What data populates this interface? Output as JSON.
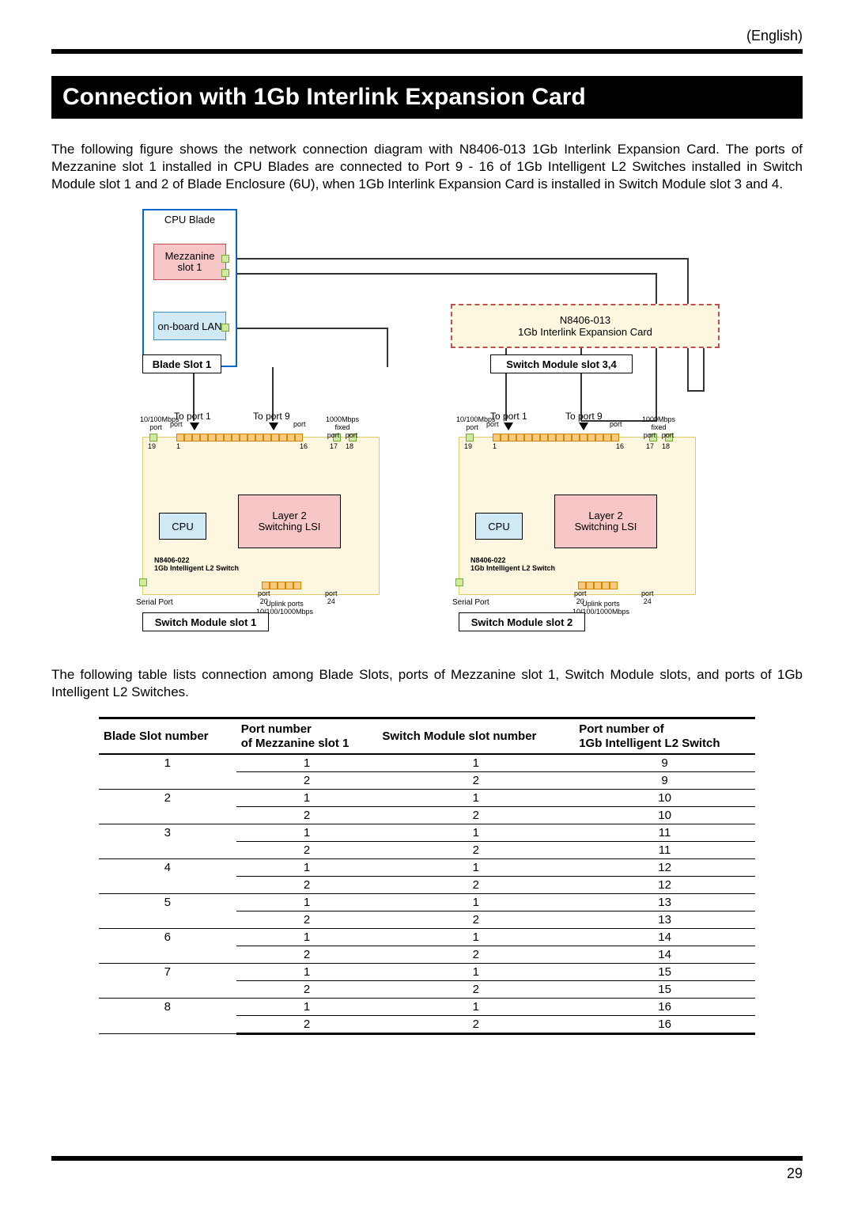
{
  "header": {
    "language_tag": "(English)"
  },
  "title": "Connection with 1Gb Interlink Expansion Card",
  "intro_text": "The following figure shows the network connection diagram with N8406-013 1Gb Interlink Expansion Card. The ports of Mezzanine slot 1 installed in CPU Blades are connected to Port 9 - 16 of 1Gb Intelligent L2 Switches installed in Switch Module slot 1 and 2 of Blade Enclosure (6U), when 1Gb Interlink Expansion Card is installed in Switch Module slot 3 and 4.",
  "diagram": {
    "cpu_blade": {
      "label": "CPU Blade",
      "bg": "#ffffff",
      "border": "#0066cc"
    },
    "mezz_slot": {
      "label_l1": "Mezzanine",
      "label_l2": "slot 1",
      "bg": "#f7c7c7",
      "border": "#c05050"
    },
    "onboard_lan": {
      "label": "on-board LAN",
      "bg": "#cfe9f5",
      "border": "#4a90c0"
    },
    "blade_slot_1": {
      "label": "Blade Slot 1",
      "bg": "#ffffff"
    },
    "interlink_card": {
      "label_l1": "N8406-013",
      "label_l2": "1Gb Interlink Expansion Card",
      "bg": "#fdf7e0",
      "border": "#dbcc6a"
    },
    "interlink_border_dash_color": "#c05050",
    "sm_slot_34": {
      "label": "Switch Module slot 3,4",
      "bg": "#ffffff"
    },
    "to_port_1": "To port 1",
    "to_port_9": "To port 9",
    "switch": {
      "bg": "#fdf7e0",
      "border": "#dbcc6a",
      "cpu_label": "CPU",
      "cpu_bg": "#cfe9f5",
      "lsi_l1": "Layer 2",
      "lsi_l2": "Switching LSI",
      "lsi_bg": "#f7c7c7",
      "model_l1": "N8406-022",
      "model_l2": "1Gb Intelligent L2 Switch",
      "serial": "Serial Port",
      "uplink_l1": "Uplink ports",
      "uplink_l2": "10/100/1000Mbps",
      "top_speed1": "10/100Mbps",
      "top_port_label": "port",
      "top_speed2": "1000Mbps fixed",
      "port_nums": {
        "p19": "19",
        "p1": "1",
        "p16": "16",
        "p17": "17",
        "p18": "18",
        "p20": "20",
        "p24": "24"
      }
    },
    "sm_slot_1": "Switch Module slot 1",
    "sm_slot_2": "Switch Module slot 2",
    "colors": {
      "wire_dark": "#333333",
      "port_green_fill": "#cfeaa0",
      "port_green_border": "#77aa33",
      "port_orange_fill": "#f7c97e",
      "port_orange_border": "#cc8800"
    }
  },
  "table_intro": "The following table lists connection among Blade Slots, ports of Mezzanine slot 1, Switch Module slots, and ports of 1Gb Intelligent L2 Switches.",
  "table": {
    "headers": {
      "c1": "Blade Slot number",
      "c2_l1": "Port number",
      "c2_l2": "of Mezzanine slot 1",
      "c3": "Switch Module slot number",
      "c4_l1": "Port number of",
      "c4_l2": "1Gb Intelligent L2 Switch"
    },
    "rows": [
      {
        "b": "1",
        "m": "1",
        "s": "1",
        "p": "9"
      },
      {
        "b": "",
        "m": "2",
        "s": "2",
        "p": "9"
      },
      {
        "b": "2",
        "m": "1",
        "s": "1",
        "p": "10"
      },
      {
        "b": "",
        "m": "2",
        "s": "2",
        "p": "10"
      },
      {
        "b": "3",
        "m": "1",
        "s": "1",
        "p": "11"
      },
      {
        "b": "",
        "m": "2",
        "s": "2",
        "p": "11"
      },
      {
        "b": "4",
        "m": "1",
        "s": "1",
        "p": "12"
      },
      {
        "b": "",
        "m": "2",
        "s": "2",
        "p": "12"
      },
      {
        "b": "5",
        "m": "1",
        "s": "1",
        "p": "13"
      },
      {
        "b": "",
        "m": "2",
        "s": "2",
        "p": "13"
      },
      {
        "b": "6",
        "m": "1",
        "s": "1",
        "p": "14"
      },
      {
        "b": "",
        "m": "2",
        "s": "2",
        "p": "14"
      },
      {
        "b": "7",
        "m": "1",
        "s": "1",
        "p": "15"
      },
      {
        "b": "",
        "m": "2",
        "s": "2",
        "p": "15"
      },
      {
        "b": "8",
        "m": "1",
        "s": "1",
        "p": "16"
      },
      {
        "b": "",
        "m": "2",
        "s": "2",
        "p": "16"
      }
    ]
  },
  "page_number": "29"
}
